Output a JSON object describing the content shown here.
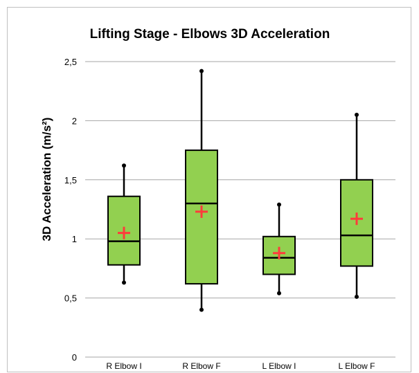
{
  "chart_data": {
    "type": "boxplot",
    "title": "Lifting Stage - Elbows 3D Acceleration",
    "ylabel": "3D Acceleration (m/s²)",
    "xlabel": "",
    "ylim": [
      0,
      2.5
    ],
    "ytick_values": [
      0,
      0.5,
      1,
      1.5,
      2,
      2.5
    ],
    "ytick_labels": [
      "0",
      "0,5",
      "1",
      "1,5",
      "2",
      "2,5"
    ],
    "grid": true,
    "categories": [
      "R Elbow I",
      "R Elbow F",
      "L Elbow I",
      "L Elbow F"
    ],
    "boxes": [
      {
        "min": 0.63,
        "q1": 0.78,
        "median": 0.98,
        "q3": 1.36,
        "max": 1.62,
        "mean": 1.05
      },
      {
        "min": 0.4,
        "q1": 0.62,
        "median": 1.3,
        "q3": 1.75,
        "max": 2.42,
        "mean": 1.23
      },
      {
        "min": 0.54,
        "q1": 0.7,
        "median": 0.84,
        "q3": 1.02,
        "max": 1.29,
        "mean": 0.88
      },
      {
        "min": 0.51,
        "q1": 0.77,
        "median": 1.03,
        "q3": 1.5,
        "max": 2.05,
        "mean": 1.17
      }
    ],
    "colors": {
      "box_fill": "#92d050",
      "outline": "#000000",
      "mean_marker": "#ff3b3b",
      "grid": "#a6a6a6"
    }
  }
}
